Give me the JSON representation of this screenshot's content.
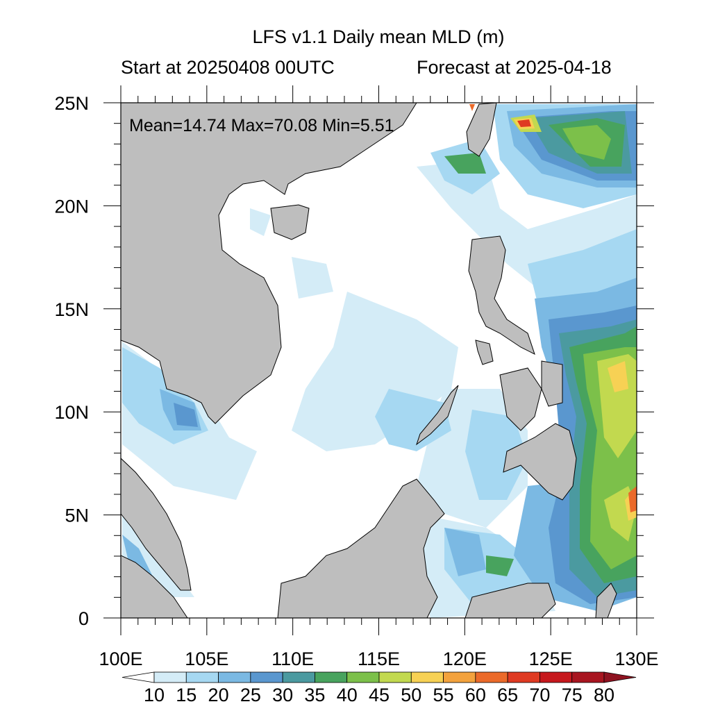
{
  "title": "LFS v1.1 Daily mean MLD (m)",
  "subtitle_left": "Start at 20250408 00UTC",
  "subtitle_right": "Forecast at 2025-04-18",
  "stats": "Mean=14.74  Max=70.08  Min=5.51",
  "x_ticks": [
    "100E",
    "105E",
    "110E",
    "115E",
    "120E",
    "125E",
    "130E"
  ],
  "y_ticks": [
    "25N",
    "20N",
    "15N",
    "10N",
    "5N",
    "0"
  ],
  "colorbar": {
    "labels": [
      "10",
      "15",
      "20",
      "25",
      "30",
      "35",
      "40",
      "45",
      "50",
      "55",
      "60",
      "65",
      "70",
      "75",
      "80"
    ],
    "colors": [
      "#ffffff",
      "#d4ecf7",
      "#a6d8f2",
      "#7bb9e3",
      "#5a97cf",
      "#4b9aa0",
      "#48a35e",
      "#7cc04a",
      "#c2d94f",
      "#f7d154",
      "#f3a23d",
      "#eb6a2a",
      "#df3a22",
      "#c6181d",
      "#a81520",
      "#8e1220"
    ]
  },
  "colors": {
    "land": "#bebebe",
    "ocean_background": "#ffffff",
    "frame": "#000000"
  }
}
